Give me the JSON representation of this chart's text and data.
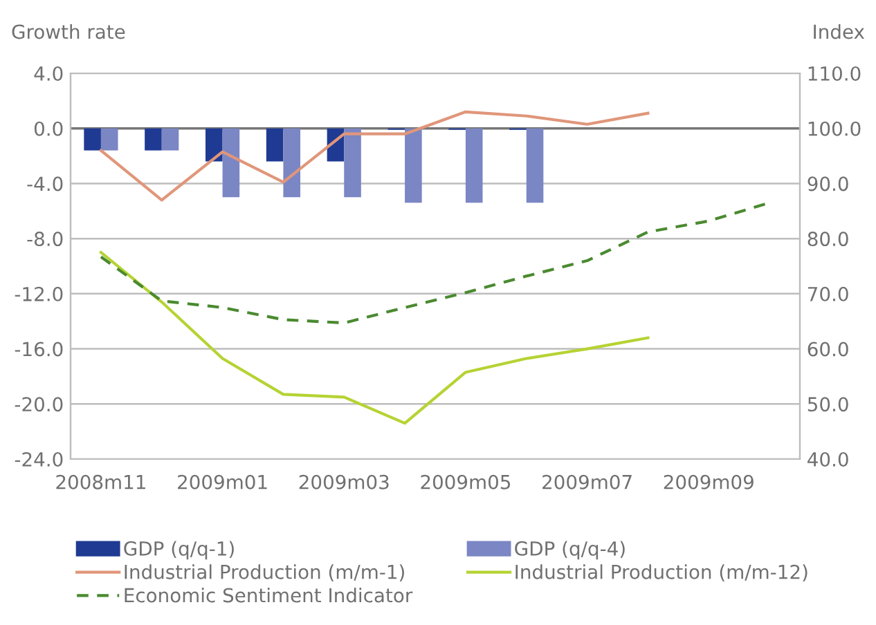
{
  "chart_data": {
    "type": "bar",
    "ylabel": "Growth rate",
    "y2label": "Index",
    "categories": [
      "2008m11",
      null,
      "2009m01",
      null,
      "2009m03",
      null,
      "2009m05",
      null,
      "2009m07",
      null,
      "2009m09",
      null
    ],
    "series": [
      {
        "name": "GDP (q/q-1)",
        "color": "#1f3a93",
        "values": [
          -1.6,
          -1.6,
          -2.4,
          -2.4,
          -2.4,
          -0.1,
          -0.1,
          -0.1,
          null,
          null,
          null,
          null
        ]
      },
      {
        "name": "GDP (q/q-4)",
        "color": "#7b86c4",
        "values": [
          -1.6,
          -1.6,
          -5.0,
          -5.0,
          -5.0,
          -5.4,
          -5.4,
          -5.4,
          null,
          null,
          null,
          null
        ]
      },
      {
        "name": "Industrial Production (m/m-1)",
        "type": "line",
        "color": "#e0967a",
        "line_style": "solid",
        "values": [
          -1.6,
          -5.2,
          -1.7,
          -3.9,
          -0.4,
          -0.4,
          1.2,
          0.9,
          0.3,
          1.1,
          null,
          null
        ]
      },
      {
        "name": "Industrial Production (m/m-12)",
        "type": "line",
        "color": "#b5d334",
        "line_style": "solid",
        "values": [
          -9.0,
          -12.6,
          -16.7,
          -19.3,
          -19.5,
          -21.4,
          -17.7,
          -16.7,
          -16.0,
          -15.2,
          null,
          null
        ]
      },
      {
        "name": "Economic Sentiment Indicator",
        "type": "line",
        "axis": "y2",
        "color": "#4a8a30",
        "line_style": "dashed",
        "values": [
          76.7,
          68.7,
          67.5,
          65.3,
          64.7,
          67.5,
          70.2,
          73.2,
          76.0,
          81.2,
          83.2,
          86.5
        ]
      }
    ],
    "ylim": [
      -24,
      4
    ],
    "yticks": [
      {
        "value": -24,
        "label": "-24.0"
      },
      {
        "value": -20,
        "label": "-20.0"
      },
      {
        "value": -16,
        "label": "-16.0"
      },
      {
        "value": -12,
        "label": "-12.0"
      },
      {
        "value": -8,
        "label": "-8.0"
      },
      {
        "value": -4,
        "label": "-4.0"
      },
      {
        "value": 0,
        "label": "0.0"
      },
      {
        "value": 4,
        "label": "4.0"
      }
    ],
    "y2lim": [
      40,
      110
    ],
    "y2ticks": [
      {
        "value": 40,
        "label": "40.0"
      },
      {
        "value": 50,
        "label": "50.0"
      },
      {
        "value": 60,
        "label": "60.0"
      },
      {
        "value": 70,
        "label": "70.0"
      },
      {
        "value": 80,
        "label": "80.0"
      },
      {
        "value": 90,
        "label": "90.0"
      },
      {
        "value": 100,
        "label": "100.0"
      },
      {
        "value": 110,
        "label": "110.0"
      }
    ],
    "ref_lines": [
      {
        "axis": "y",
        "value": 0,
        "color": "#777777"
      }
    ],
    "grid": "y",
    "legend": "bottom",
    "marker": "none"
  }
}
